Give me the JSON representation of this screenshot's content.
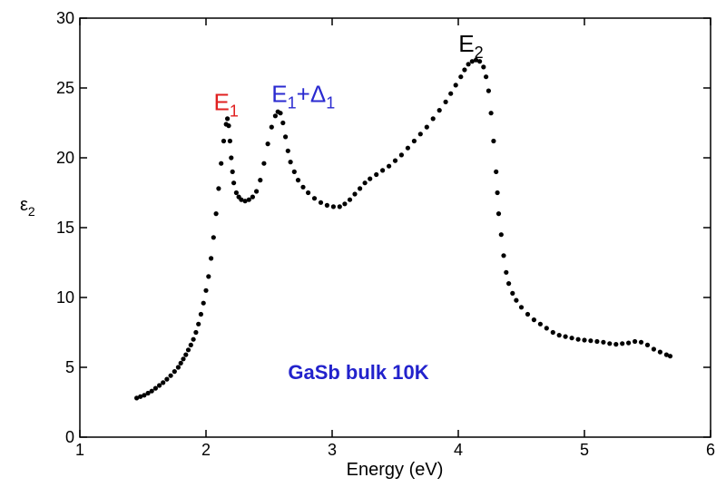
{
  "chart_data": {
    "type": "scatter",
    "title": "",
    "xlabel": "Energy (eV)",
    "ylabel": {
      "base": "ε",
      "sub": "2"
    },
    "xlim": [
      1,
      6
    ],
    "ylim": [
      0,
      30
    ],
    "xticks": [
      1,
      2,
      3,
      4,
      5,
      6
    ],
    "yticks": [
      0,
      5,
      10,
      15,
      20,
      25,
      30
    ],
    "grid": false,
    "sample_label": "GaSb bulk 10K",
    "colors": {
      "points": "#000000",
      "e1": "#e02020",
      "e1d": "#2a2ad0",
      "e2": "#000000",
      "label": "#2222cc"
    },
    "annotations": [
      {
        "id": "e1",
        "base": "E",
        "sub": "1",
        "extra": "",
        "extra_sub": "",
        "x": 2.16,
        "y": 23.4
      },
      {
        "id": "e1d",
        "base": "E",
        "sub": "1",
        "extra": "+Δ",
        "extra_sub": "1",
        "x": 2.52,
        "y": 24.0
      },
      {
        "id": "e2",
        "base": "E",
        "sub": "2",
        "extra": "",
        "extra_sub": "",
        "x": 4.1,
        "y": 27.6
      }
    ],
    "series": [
      {
        "points": [
          [
            1.45,
            2.8
          ],
          [
            1.48,
            2.9
          ],
          [
            1.51,
            3.0
          ],
          [
            1.54,
            3.15
          ],
          [
            1.57,
            3.3
          ],
          [
            1.6,
            3.5
          ],
          [
            1.63,
            3.7
          ],
          [
            1.66,
            3.9
          ],
          [
            1.69,
            4.15
          ],
          [
            1.72,
            4.4
          ],
          [
            1.75,
            4.7
          ],
          [
            1.78,
            5.0
          ],
          [
            1.8,
            5.3
          ],
          [
            1.82,
            5.6
          ],
          [
            1.84,
            5.9
          ],
          [
            1.86,
            6.25
          ],
          [
            1.88,
            6.6
          ],
          [
            1.9,
            7.0
          ],
          [
            1.92,
            7.5
          ],
          [
            1.94,
            8.1
          ],
          [
            1.96,
            8.8
          ],
          [
            1.98,
            9.6
          ],
          [
            2.0,
            10.5
          ],
          [
            2.02,
            11.5
          ],
          [
            2.04,
            12.8
          ],
          [
            2.06,
            14.3
          ],
          [
            2.08,
            16.0
          ],
          [
            2.1,
            17.8
          ],
          [
            2.12,
            19.6
          ],
          [
            2.14,
            21.2
          ],
          [
            2.16,
            22.4
          ],
          [
            2.17,
            22.8
          ],
          [
            2.18,
            22.3
          ],
          [
            2.19,
            21.2
          ],
          [
            2.2,
            20.0
          ],
          [
            2.21,
            19.0
          ],
          [
            2.22,
            18.2
          ],
          [
            2.24,
            17.5
          ],
          [
            2.26,
            17.2
          ],
          [
            2.28,
            17.0
          ],
          [
            2.31,
            16.9
          ],
          [
            2.34,
            17.0
          ],
          [
            2.37,
            17.2
          ],
          [
            2.4,
            17.6
          ],
          [
            2.43,
            18.4
          ],
          [
            2.46,
            19.6
          ],
          [
            2.49,
            21.0
          ],
          [
            2.52,
            22.2
          ],
          [
            2.55,
            23.0
          ],
          [
            2.57,
            23.3
          ],
          [
            2.59,
            23.2
          ],
          [
            2.61,
            22.5
          ],
          [
            2.63,
            21.5
          ],
          [
            2.65,
            20.5
          ],
          [
            2.67,
            19.7
          ],
          [
            2.7,
            19.0
          ],
          [
            2.73,
            18.4
          ],
          [
            2.77,
            17.9
          ],
          [
            2.81,
            17.5
          ],
          [
            2.86,
            17.1
          ],
          [
            2.91,
            16.8
          ],
          [
            2.96,
            16.6
          ],
          [
            3.01,
            16.5
          ],
          [
            3.06,
            16.5
          ],
          [
            3.1,
            16.7
          ],
          [
            3.14,
            17.0
          ],
          [
            3.18,
            17.4
          ],
          [
            3.22,
            17.8
          ],
          [
            3.26,
            18.2
          ],
          [
            3.3,
            18.5
          ],
          [
            3.35,
            18.8
          ],
          [
            3.4,
            19.1
          ],
          [
            3.45,
            19.4
          ],
          [
            3.5,
            19.8
          ],
          [
            3.55,
            20.2
          ],
          [
            3.6,
            20.7
          ],
          [
            3.65,
            21.2
          ],
          [
            3.7,
            21.7
          ],
          [
            3.75,
            22.2
          ],
          [
            3.8,
            22.8
          ],
          [
            3.85,
            23.4
          ],
          [
            3.9,
            24.0
          ],
          [
            3.94,
            24.6
          ],
          [
            3.98,
            25.2
          ],
          [
            4.02,
            25.8
          ],
          [
            4.05,
            26.3
          ],
          [
            4.08,
            26.7
          ],
          [
            4.11,
            26.9
          ],
          [
            4.14,
            27.0
          ],
          [
            4.17,
            26.9
          ],
          [
            4.2,
            26.5
          ],
          [
            4.22,
            25.8
          ],
          [
            4.24,
            24.8
          ],
          [
            4.26,
            23.2
          ],
          [
            4.28,
            21.2
          ],
          [
            4.3,
            19.0
          ],
          [
            4.31,
            17.5
          ],
          [
            4.32,
            16.0
          ],
          [
            4.34,
            14.5
          ],
          [
            4.36,
            13.0
          ],
          [
            4.38,
            11.8
          ],
          [
            4.4,
            11.0
          ],
          [
            4.43,
            10.3
          ],
          [
            4.46,
            9.8
          ],
          [
            4.5,
            9.3
          ],
          [
            4.55,
            8.8
          ],
          [
            4.6,
            8.4
          ],
          [
            4.65,
            8.1
          ],
          [
            4.7,
            7.8
          ],
          [
            4.75,
            7.5
          ],
          [
            4.8,
            7.3
          ],
          [
            4.85,
            7.2
          ],
          [
            4.9,
            7.1
          ],
          [
            4.95,
            7.0
          ],
          [
            5.0,
            6.95
          ],
          [
            5.05,
            6.9
          ],
          [
            5.1,
            6.85
          ],
          [
            5.15,
            6.8
          ],
          [
            5.2,
            6.7
          ],
          [
            5.25,
            6.65
          ],
          [
            5.3,
            6.7
          ],
          [
            5.35,
            6.75
          ],
          [
            5.4,
            6.85
          ],
          [
            5.45,
            6.8
          ],
          [
            5.5,
            6.6
          ],
          [
            5.55,
            6.3
          ],
          [
            5.6,
            6.1
          ],
          [
            5.65,
            5.9
          ],
          [
            5.68,
            5.8
          ]
        ]
      }
    ]
  }
}
